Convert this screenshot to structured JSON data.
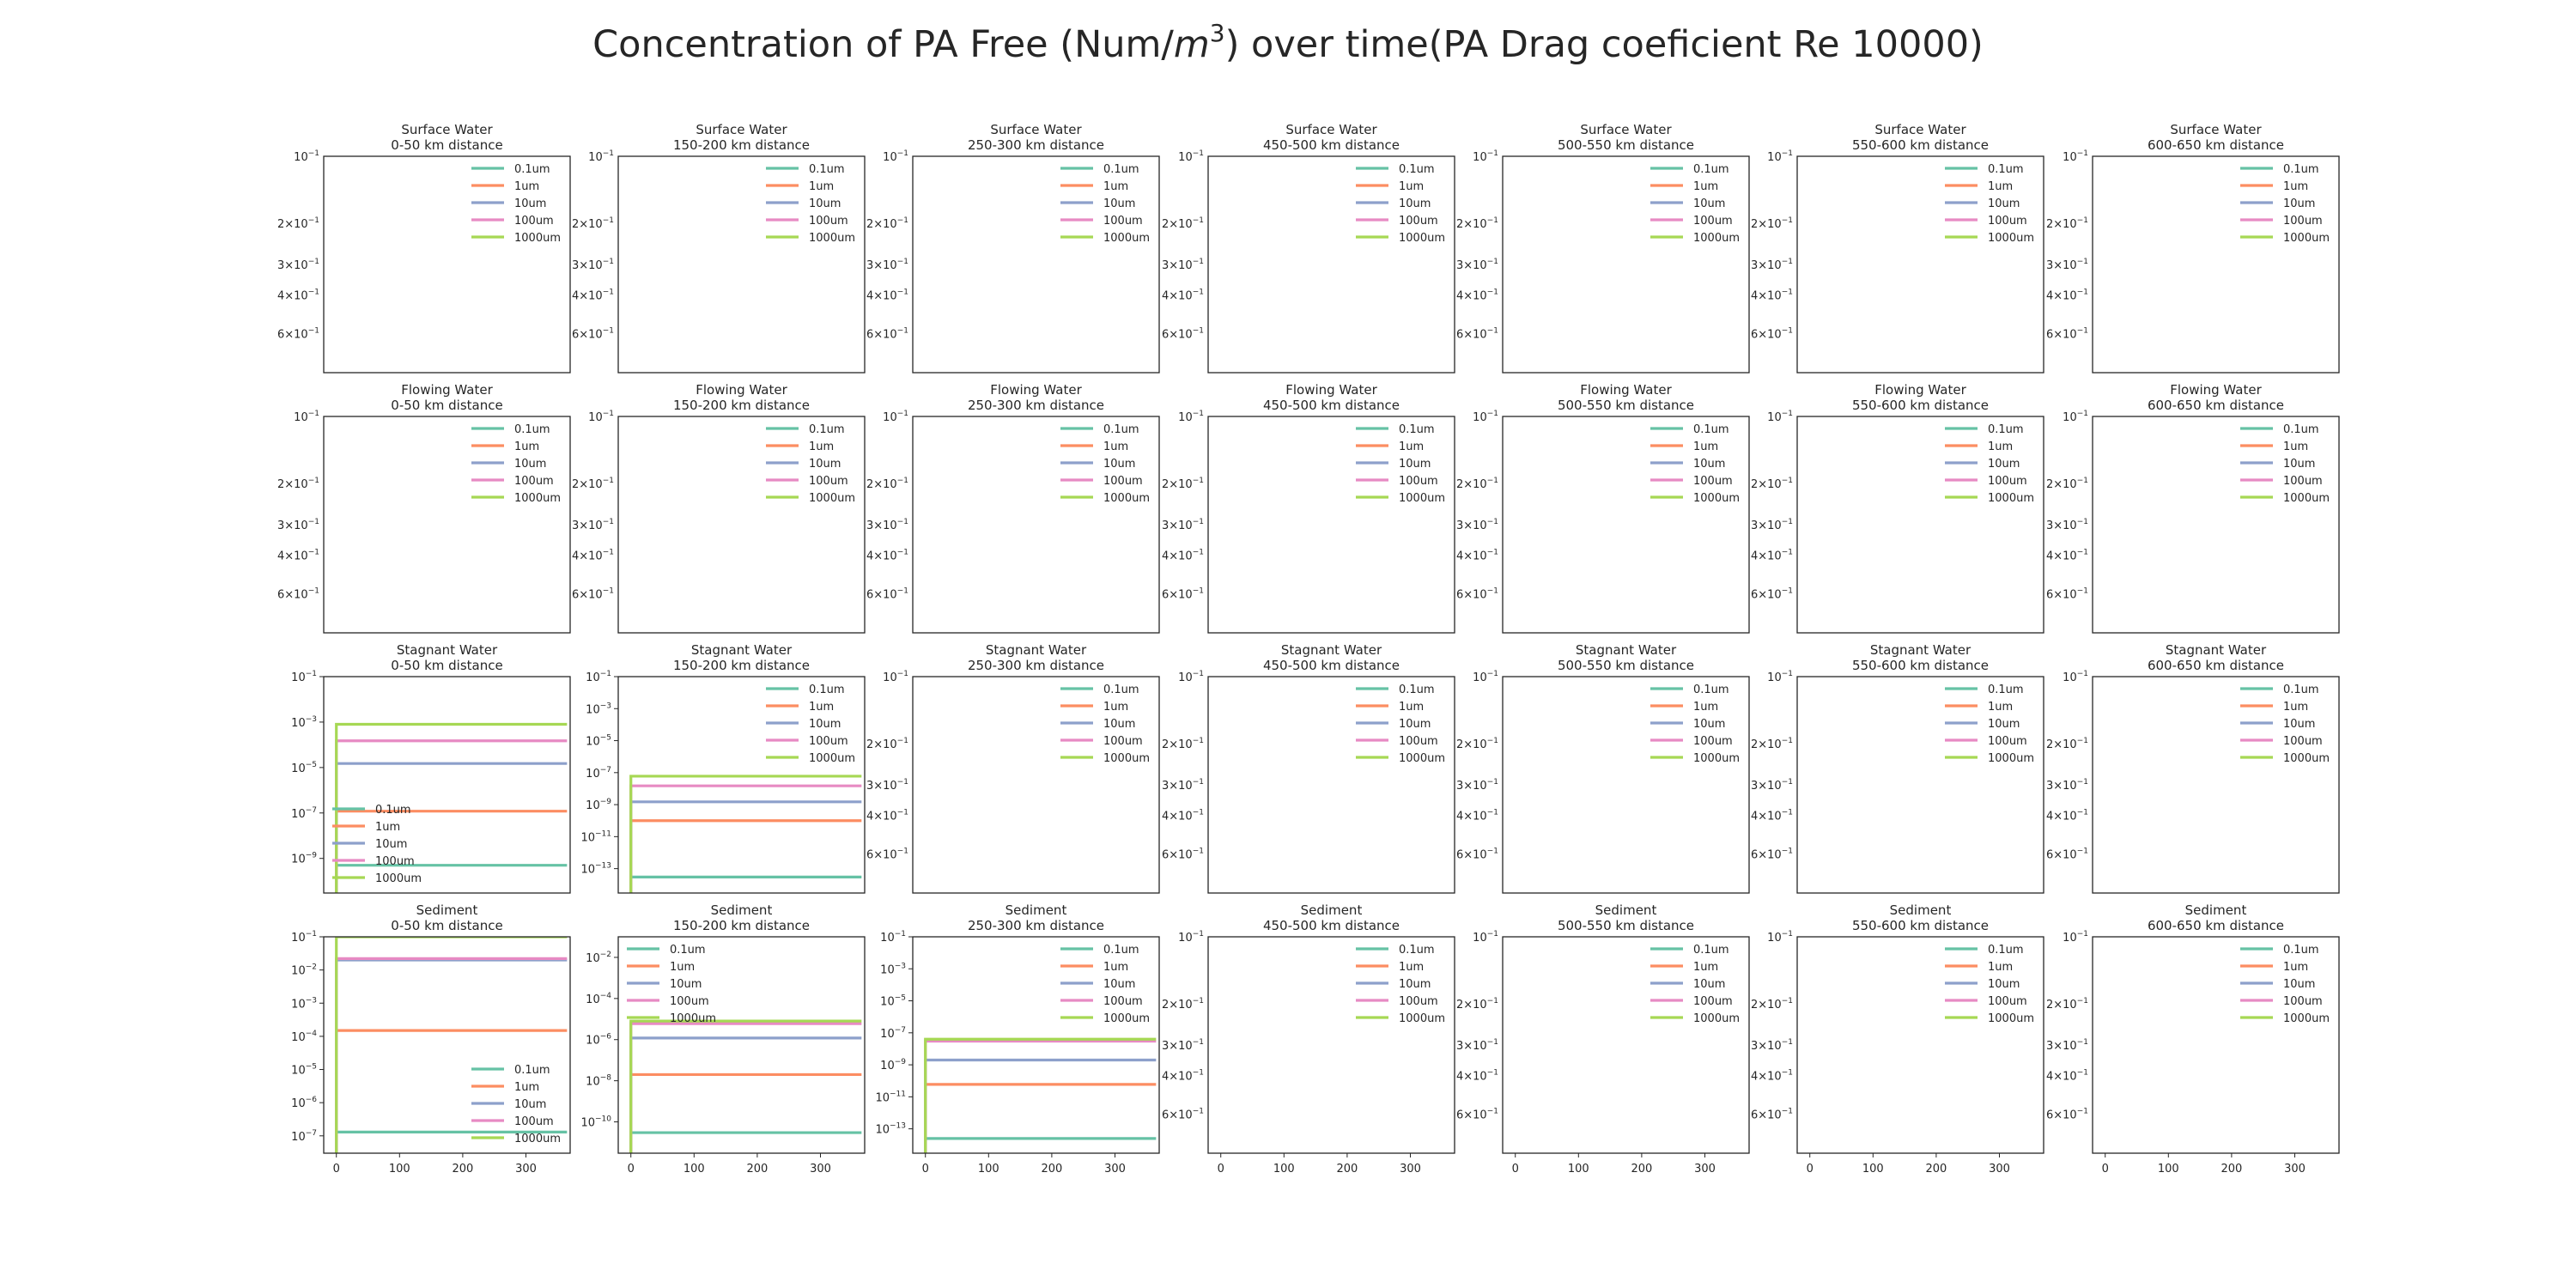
{
  "figure": {
    "title_prefix": "Concentration of PA Free (Num/",
    "title_math_base": "m",
    "title_math_exp": "3",
    "title_suffix": ") over time(PA Drag coeficient Re 10000)"
  },
  "colors": {
    "0.1um": "#66c2a5",
    "1um": "#fc8d62",
    "10um": "#8da0cb",
    "100um": "#e78ac3",
    "1000um": "#a6d854"
  },
  "rows": [
    "Surface Water",
    "Flowing Water",
    "Stagnant Water",
    "Sediment"
  ],
  "columns": [
    "0-50 km distance",
    "150-200 km distance",
    "250-300 km distance",
    "450-500 km distance",
    "500-550 km distance",
    "550-600 km distance",
    "600-650 km distance"
  ],
  "x_ticks": [
    "0",
    "100",
    "200",
    "300"
  ],
  "legend_entries": [
    "0.1um",
    "1um",
    "10um",
    "100um",
    "1000um"
  ],
  "empty_y_ticks": [
    {
      "mant": "",
      "exp": "−1"
    },
    {
      "mant": "2×",
      "exp": "−1"
    },
    {
      "mant": "3×",
      "exp": "−1"
    },
    {
      "mant": "4×",
      "exp": "−1"
    },
    {
      "mant": "6×",
      "exp": "−1"
    }
  ],
  "chart_data": [
    {
      "type": "line",
      "panel": "Stagnant Water / 0-50 km distance",
      "y_scale": "log",
      "ylim": [
        3e-11,
        0.1
      ],
      "xlim": [
        -20,
        370
      ],
      "x": [
        0,
        365
      ],
      "y_ticks": [
        {
          "value": 0.1,
          "exp": "−1"
        },
        {
          "value": 0.001,
          "exp": "−3"
        },
        {
          "value": 1e-05,
          "exp": "−5"
        },
        {
          "value": 1e-07,
          "exp": "−7"
        },
        {
          "value": 1e-09,
          "exp": "−9"
        }
      ],
      "legend_loc": "lower-left",
      "series": [
        {
          "name": "0.1um",
          "onset": 0,
          "level": 5e-10
        },
        {
          "name": "1um",
          "onset": 0,
          "level": 1.2e-07
        },
        {
          "name": "10um",
          "onset": 0,
          "level": 1.5e-05
        },
        {
          "name": "100um",
          "onset": 0,
          "level": 0.00015
        },
        {
          "name": "1000um",
          "onset": 0,
          "level": 0.0008
        }
      ]
    },
    {
      "type": "line",
      "panel": "Stagnant Water / 150-200 km distance",
      "y_scale": "log",
      "ylim": [
        3e-15,
        0.1
      ],
      "xlim": [
        -20,
        370
      ],
      "x": [
        0,
        365
      ],
      "y_ticks": [
        {
          "value": 0.1,
          "exp": "−1"
        },
        {
          "value": 0.001,
          "exp": "−3"
        },
        {
          "value": 1e-05,
          "exp": "−5"
        },
        {
          "value": 1e-07,
          "exp": "−7"
        },
        {
          "value": 1e-09,
          "exp": "−9"
        },
        {
          "value": 1e-11,
          "exp": "−11"
        },
        {
          "value": 1e-13,
          "exp": "−13"
        }
      ],
      "legend_loc": "upper-right",
      "series": [
        {
          "name": "0.1um",
          "onset": 0,
          "level": 3e-14
        },
        {
          "name": "1um",
          "onset": 0,
          "level": 1e-10
        },
        {
          "name": "10um",
          "onset": 0,
          "level": 1.5e-09
        },
        {
          "name": "100um",
          "onset": 0,
          "level": 1.5e-08
        },
        {
          "name": "1000um",
          "onset": 0,
          "level": 6e-08
        }
      ]
    },
    {
      "type": "line",
      "panel": "Sediment / 0-50 km distance",
      "y_scale": "log",
      "ylim": [
        3e-08,
        0.1
      ],
      "xlim": [
        -20,
        370
      ],
      "x": [
        0,
        365
      ],
      "y_ticks": [
        {
          "value": 0.1,
          "exp": "−1"
        },
        {
          "value": 0.01,
          "exp": "−2"
        },
        {
          "value": 0.001,
          "exp": "−3"
        },
        {
          "value": 0.0001,
          "exp": "−4"
        },
        {
          "value": 1e-05,
          "exp": "−5"
        },
        {
          "value": 1e-06,
          "exp": "−6"
        },
        {
          "value": 1e-07,
          "exp": "−7"
        }
      ],
      "legend_loc": "lower-right",
      "series": [
        {
          "name": "0.1um",
          "onset": 0,
          "level": 1.3e-07
        },
        {
          "name": "1um",
          "onset": 0,
          "level": 0.00015
        },
        {
          "name": "10um",
          "onset": 0,
          "level": 0.02
        },
        {
          "name": "100um",
          "onset": 0,
          "level": 0.022
        },
        {
          "name": "1000um",
          "onset": 0,
          "level": 0.1
        }
      ]
    },
    {
      "type": "line",
      "panel": "Sediment / 150-200 km distance",
      "y_scale": "log",
      "ylim": [
        3e-12,
        0.1
      ],
      "xlim": [
        -20,
        370
      ],
      "x": [
        0,
        365
      ],
      "y_ticks": [
        {
          "value": 0.01,
          "exp": "−2"
        },
        {
          "value": 0.0001,
          "exp": "−4"
        },
        {
          "value": 1e-06,
          "exp": "−6"
        },
        {
          "value": 1e-08,
          "exp": "−8"
        },
        {
          "value": 1e-10,
          "exp": "−10"
        }
      ],
      "legend_loc": "upper-left",
      "series": [
        {
          "name": "0.1um",
          "onset": 0,
          "level": 3e-11
        },
        {
          "name": "1um",
          "onset": 0,
          "level": 2e-08
        },
        {
          "name": "10um",
          "onset": 0,
          "level": 1.2e-06
        },
        {
          "name": "100um",
          "onset": 0,
          "level": 6e-06
        },
        {
          "name": "1000um",
          "onset": 0,
          "level": 8e-06
        }
      ]
    },
    {
      "type": "line",
      "panel": "Sediment / 250-300 km distance",
      "y_scale": "log",
      "ylim": [
        3e-15,
        0.1
      ],
      "xlim": [
        -20,
        370
      ],
      "x": [
        0,
        365
      ],
      "y_ticks": [
        {
          "value": 0.1,
          "exp": "−1"
        },
        {
          "value": 0.001,
          "exp": "−3"
        },
        {
          "value": 1e-05,
          "exp": "−5"
        },
        {
          "value": 1e-07,
          "exp": "−7"
        },
        {
          "value": 1e-09,
          "exp": "−9"
        },
        {
          "value": 1e-11,
          "exp": "−11"
        },
        {
          "value": 1e-13,
          "exp": "−13"
        }
      ],
      "legend_loc": "upper-right",
      "series": [
        {
          "name": "0.1um",
          "onset": 0,
          "level": 2.5e-14
        },
        {
          "name": "1um",
          "onset": 0,
          "level": 6e-11
        },
        {
          "name": "10um",
          "onset": 0,
          "level": 2e-09
        },
        {
          "name": "100um",
          "onset": 0,
          "level": 3e-08
        },
        {
          "name": "1000um",
          "onset": 0,
          "level": 4e-08
        }
      ]
    }
  ]
}
